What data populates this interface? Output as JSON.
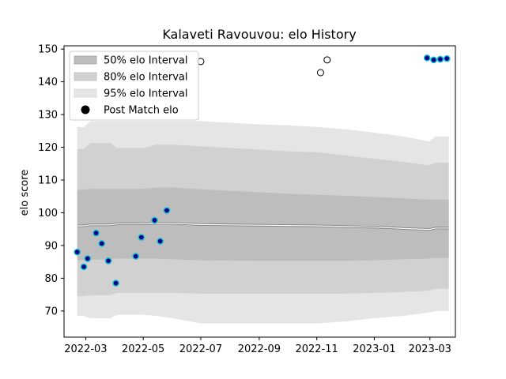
{
  "chart_data": {
    "type": "line",
    "title": "Kalaveti Ravouvou: elo History",
    "xlabel": "",
    "ylabel": "elo score",
    "xlim": [
      "2022-02-06",
      "2023-03-28"
    ],
    "ylim": [
      62,
      151
    ],
    "y_ticks": [
      70,
      80,
      90,
      100,
      110,
      120,
      130,
      140,
      150
    ],
    "x_ticks": [
      {
        "date": "2022-03-01",
        "label": "2022-03"
      },
      {
        "date": "2022-05-01",
        "label": "2022-05"
      },
      {
        "date": "2022-07-01",
        "label": "2022-07"
      },
      {
        "date": "2022-09-01",
        "label": "2022-09"
      },
      {
        "date": "2022-11-01",
        "label": "2022-11"
      },
      {
        "date": "2023-01-01",
        "label": "2023-01"
      },
      {
        "date": "2023-03-01",
        "label": "2023-03"
      }
    ],
    "legend": {
      "placement": "top-left",
      "entries": [
        "50% elo Interval",
        "80% elo Interval",
        "95% elo Interval",
        "Post Match elo"
      ]
    },
    "band_dates": [
      "2022-02-20",
      "2022-02-27",
      "2022-03-06",
      "2022-03-13",
      "2022-03-20",
      "2022-03-27",
      "2022-04-03",
      "2022-05-01",
      "2022-05-15",
      "2022-06-01",
      "2022-07-01",
      "2022-08-01",
      "2022-09-01",
      "2022-10-01",
      "2022-11-01",
      "2022-12-01",
      "2023-01-01",
      "2023-02-01",
      "2023-02-28",
      "2023-03-07",
      "2023-03-21"
    ],
    "series": [
      {
        "name": "95% elo Interval",
        "lower": [
          68.5,
          68.5,
          67.8,
          67.8,
          67.8,
          67.8,
          68.8,
          68.8,
          68.5,
          67.8,
          66.2,
          66.2,
          66.2,
          66.2,
          66.2,
          66.8,
          67.8,
          68.5,
          69.5,
          70.0,
          70.0
        ],
        "upper": [
          126.2,
          126.2,
          128.0,
          128.0,
          128.0,
          128.0,
          128.0,
          128.0,
          128.0,
          128.0,
          128.0,
          127.5,
          127.0,
          126.7,
          126.2,
          125.5,
          124.5,
          123.3,
          121.8,
          123.3,
          123.3
        ]
      },
      {
        "name": "80% elo Interval",
        "lower": [
          74.5,
          74.5,
          74.8,
          74.8,
          74.8,
          74.8,
          75.5,
          75.5,
          75.5,
          75.5,
          75.3,
          75.3,
          75.3,
          75.3,
          75.3,
          75.3,
          75.5,
          75.8,
          76.2,
          76.8,
          76.8
        ],
        "upper": [
          119.5,
          119.5,
          121.3,
          121.3,
          121.3,
          121.3,
          119.8,
          119.8,
          120.8,
          120.8,
          120.3,
          119.8,
          119.3,
          118.8,
          118.5,
          117.5,
          116.5,
          115.5,
          114.5,
          115.3,
          115.3
        ]
      },
      {
        "name": "50% elo Interval",
        "lower": [
          85.5,
          85.5,
          85.7,
          85.7,
          85.7,
          85.7,
          86.0,
          86.0,
          86.0,
          85.8,
          85.5,
          85.4,
          85.3,
          85.3,
          85.3,
          85.3,
          85.5,
          85.8,
          86.0,
          86.2,
          86.2
        ],
        "upper": [
          107.0,
          107.0,
          107.3,
          107.3,
          107.3,
          107.3,
          107.3,
          107.3,
          107.7,
          107.7,
          107.2,
          106.7,
          106.3,
          105.8,
          105.5,
          105.2,
          104.8,
          104.4,
          104.0,
          104.0,
          104.0
        ]
      },
      {
        "name": "Expected elo",
        "values": [
          96.0,
          96.0,
          96.3,
          96.3,
          96.3,
          96.3,
          96.6,
          96.6,
          96.8,
          96.8,
          96.4,
          96.3,
          96.2,
          96.1,
          96.0,
          95.8,
          95.6,
          95.2,
          94.9,
          95.3,
          95.3
        ]
      }
    ],
    "post_match": {
      "name": "Post Match elo",
      "points": [
        {
          "x": "2022-02-20",
          "y": 88.0
        },
        {
          "x": "2022-02-27",
          "y": 83.5
        },
        {
          "x": "2022-03-03",
          "y": 86.0
        },
        {
          "x": "2022-03-12",
          "y": 93.8
        },
        {
          "x": "2022-03-18",
          "y": 90.6
        },
        {
          "x": "2022-03-25",
          "y": 85.3
        },
        {
          "x": "2022-04-02",
          "y": 78.5
        },
        {
          "x": "2022-04-23",
          "y": 86.7
        },
        {
          "x": "2022-04-29",
          "y": 92.5
        },
        {
          "x": "2022-05-13",
          "y": 97.7
        },
        {
          "x": "2022-05-19",
          "y": 91.3
        },
        {
          "x": "2022-05-26",
          "y": 100.7
        },
        {
          "x": "2023-02-26",
          "y": 147.3
        },
        {
          "x": "2023-03-05",
          "y": 146.7
        },
        {
          "x": "2023-03-12",
          "y": 146.9
        },
        {
          "x": "2023-03-19",
          "y": 147.1
        }
      ]
    },
    "pre_match_markers": [
      {
        "x": "2022-07-01",
        "y": 146.2
      },
      {
        "x": "2022-11-05",
        "y": 142.8
      },
      {
        "x": "2022-11-12",
        "y": 146.7
      }
    ],
    "colors": {
      "band_95": "#e5e5e5",
      "band_80": "#d1d1d1",
      "band_50": "#bdbdbd",
      "expected_line": "#ffffff",
      "expected_edge": "#7f7f7f",
      "post_match_fill": "#00008b",
      "post_match_edge": "#17becf",
      "hollow_marker_edge": "#000000",
      "axes": "#000000"
    }
  }
}
